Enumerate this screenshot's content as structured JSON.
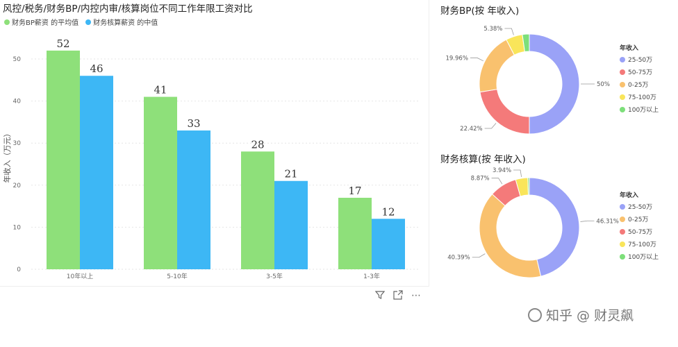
{
  "bar_chart": {
    "title": "风控/税务/财务BP/内控内审/核算岗位不同工作年限工资对比",
    "legend": [
      {
        "label": "财务BP薪资 的平均值",
        "color": "#8ee07a"
      },
      {
        "label": "财务核算薪资 的中值",
        "color": "#3db7f5"
      }
    ]
  },
  "donut1": {
    "title": "财务BP(按 年收入)"
  },
  "donut2": {
    "title": "财务核算(按 年收入)"
  },
  "toolbar": {
    "filter_icon": "filter-icon",
    "focus_icon": "focus-mode-icon",
    "more_label": "⋯"
  },
  "watermark": {
    "text": "知乎 @ 财灵飙"
  },
  "chart_data": [
    {
      "type": "bar",
      "title": "风控/税务/财务BP/内控内审/核算岗位不同工作年限工资对比",
      "categories": [
        "10年以上",
        "5-10年",
        "3-5年",
        "1-3年"
      ],
      "series": [
        {
          "name": "财务BP薪资 的平均值",
          "values": [
            52,
            41,
            28,
            17
          ],
          "color": "#8ee07a"
        },
        {
          "name": "财务核算薪资 的中值",
          "values": [
            46,
            33,
            21,
            12
          ],
          "color": "#3db7f5"
        }
      ],
      "data_labels": [
        [
          "52",
          "41",
          "28",
          "17"
        ],
        [
          "46",
          "33",
          "21",
          "12"
        ]
      ],
      "ylabel": "年收入（万元）",
      "ylim": [
        0,
        50
      ],
      "yticks": [
        "0",
        "10",
        "20",
        "30",
        "40",
        "50"
      ],
      "grid": true,
      "legend_position": "top-left"
    },
    {
      "type": "pie",
      "title": "财务BP(按 年收入)",
      "legend_title": "年收入",
      "legend_position": "right",
      "slices": [
        {
          "label": "25-50万",
          "value": 50.0,
          "value_label": "50%",
          "color": "#9aa2f7"
        },
        {
          "label": "50-75万",
          "value": 22.42,
          "value_label": "22.42%",
          "color": "#f47a7a"
        },
        {
          "label": "0-25万",
          "value": 19.96,
          "value_label": "19.96%",
          "color": "#f9c16e"
        },
        {
          "label": "75-100万",
          "value": 5.38,
          "value_label": "5.38%",
          "color": "#f9e55a"
        },
        {
          "label": "100万以上",
          "value": 2.24,
          "value_label": "",
          "color": "#7ddf7a"
        }
      ]
    },
    {
      "type": "pie",
      "title": "财务核算(按 年收入)",
      "legend_title": "年收入",
      "legend_position": "right",
      "slices": [
        {
          "label": "25-50万",
          "value": 46.31,
          "value_label": "46.31%",
          "color": "#9aa2f7"
        },
        {
          "label": "0-25万",
          "value": 40.39,
          "value_label": "40.39%",
          "color": "#f9c16e"
        },
        {
          "label": "50-75万",
          "value": 8.87,
          "value_label": "8.87%",
          "color": "#f47a7a"
        },
        {
          "label": "75-100万",
          "value": 3.94,
          "value_label": "3.94%",
          "color": "#f9e55a"
        },
        {
          "label": "100万以上",
          "value": 0.49,
          "value_label": "",
          "color": "#7ddf7a"
        }
      ]
    }
  ]
}
